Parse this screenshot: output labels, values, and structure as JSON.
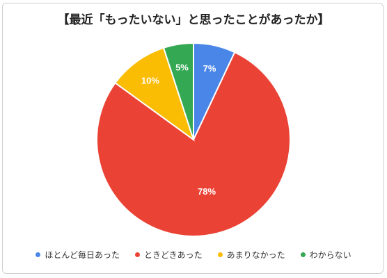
{
  "chart_data": {
    "type": "pie",
    "title": "【最近「もったいない」と思ったことがあったか】",
    "categories": [
      "ほとんど毎日あった",
      "ときどきあった",
      "あまりなかった",
      "わからない"
    ],
    "values": [
      7,
      78,
      10,
      5
    ],
    "value_labels": [
      "7%",
      "78%",
      "10%",
      "5%"
    ],
    "colors": [
      "#4a86e8",
      "#ea4335",
      "#fbbc04",
      "#34a853"
    ],
    "legend_position": "bottom"
  }
}
